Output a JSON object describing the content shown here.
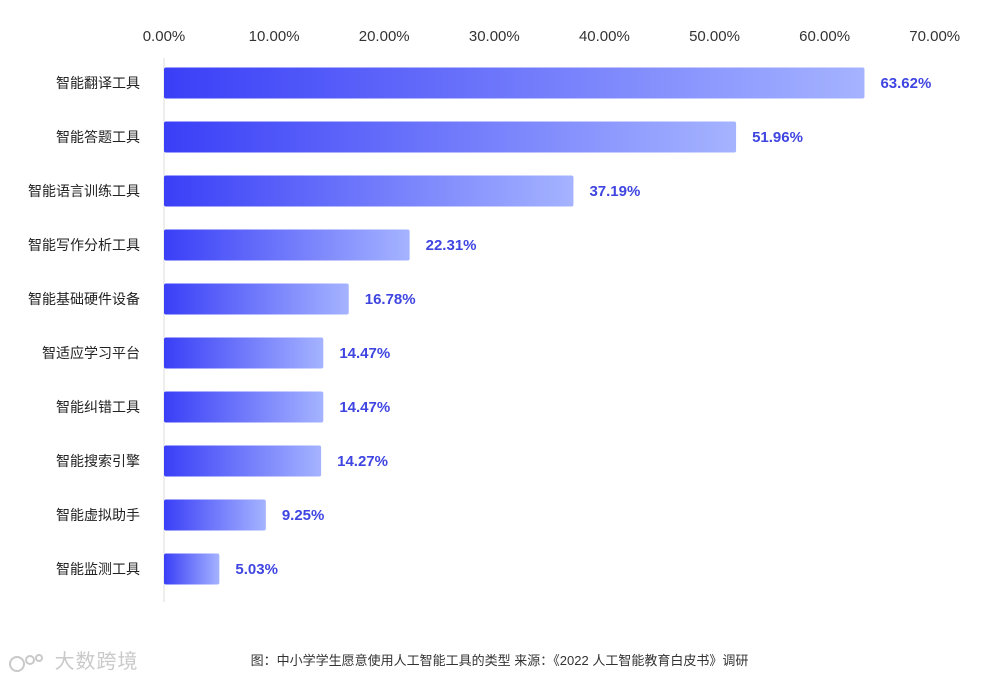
{
  "chart_data": {
    "type": "bar",
    "orientation": "horizontal",
    "categories": [
      "智能翻译工具",
      "智能答题工具",
      "智能语言训练工具",
      "智能写作分析工具",
      "智能基础硬件设备",
      "智适应学习平台",
      "智能纠错工具",
      "智能搜索引擎",
      "智能虚拟助手",
      "智能监测工具"
    ],
    "values": [
      63.62,
      51.96,
      37.19,
      22.31,
      16.78,
      14.47,
      14.47,
      14.27,
      9.25,
      5.03
    ],
    "data_labels": [
      "63.62%",
      "51.96%",
      "37.19%",
      "22.31%",
      "16.78%",
      "14.47%",
      "14.47%",
      "14.27%",
      "9.25%",
      "5.03%"
    ],
    "x_ticks": [
      "0.00%",
      "10.00%",
      "20.00%",
      "30.00%",
      "40.00%",
      "50.00%",
      "60.00%",
      "70.00%"
    ],
    "xlim": [
      0,
      70
    ],
    "x_axis_position": "top",
    "grid": false,
    "legend": "none",
    "title": "",
    "xlabel": "",
    "ylabel": ""
  },
  "caption": "图：中小学学生愿意使用人工智能工具的类型  来源：《2022 人工智能教育白皮书》调研",
  "watermark": "大数跨境",
  "colors": {
    "bar_start": "#3a3ff7",
    "bar_end": "#a5b3ff",
    "data_label": "#3f45e0"
  }
}
